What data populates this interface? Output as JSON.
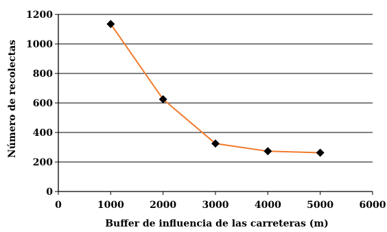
{
  "chart_data": {
    "type": "line",
    "xlabel": "Buffer de influencia de las carreteras (m)",
    "ylabel": "Número de recolectas",
    "xlim": [
      0,
      6000
    ],
    "ylim": [
      0,
      1200
    ],
    "x_ticks": [
      "0",
      "1000",
      "2000",
      "3000",
      "4000",
      "5000",
      "6000"
    ],
    "y_ticks": [
      "0",
      "200",
      "400",
      "600",
      "800",
      "1000",
      "1200"
    ],
    "grid": "horizontal",
    "series": [
      {
        "x": [
          1000,
          2000,
          3000,
          4000,
          5000
        ],
        "y": [
          1135,
          625,
          325,
          273,
          263
        ],
        "line_color": "#f07a2c",
        "marker": "diamond",
        "marker_color": "#000000"
      }
    ]
  }
}
